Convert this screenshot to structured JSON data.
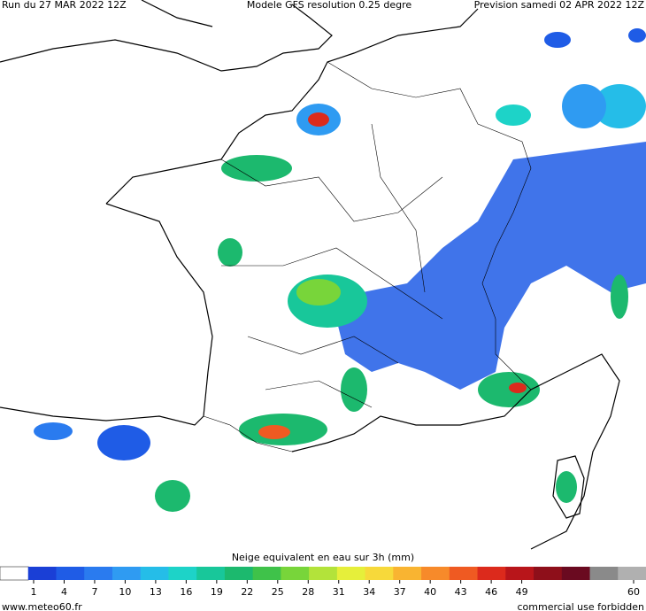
{
  "header": {
    "run": "Run du 27 MAR 2022 12Z",
    "model": "Modele GFS resolution 0.25 degre",
    "forecast": "Prevision samedi 02 APR 2022 12Z"
  },
  "colorbar": {
    "title": "Neige equivalent en eau sur 3h (mm)",
    "ticks": [
      1,
      4,
      7,
      10,
      13,
      16,
      19,
      22,
      25,
      28,
      31,
      34,
      37,
      40,
      43,
      46,
      49,
      60
    ],
    "colors": [
      "#ffffff",
      "#1a3fd6",
      "#1f5ce6",
      "#2a7bef",
      "#2f9bf2",
      "#25bde8",
      "#1dd3c8",
      "#18c79a",
      "#1cb96e",
      "#3fc24a",
      "#78d53a",
      "#b3e33a",
      "#e6ef3a",
      "#f7d93a",
      "#f9b431",
      "#f78a2a",
      "#ef5a22",
      "#dc2a1c",
      "#b8151a",
      "#8e0f1a",
      "#6a0a20",
      "#8a8a8a",
      "#b0b0b0"
    ]
  },
  "footer": {
    "site": "www.meteo60.fr",
    "notice": "commercial use forbidden"
  }
}
